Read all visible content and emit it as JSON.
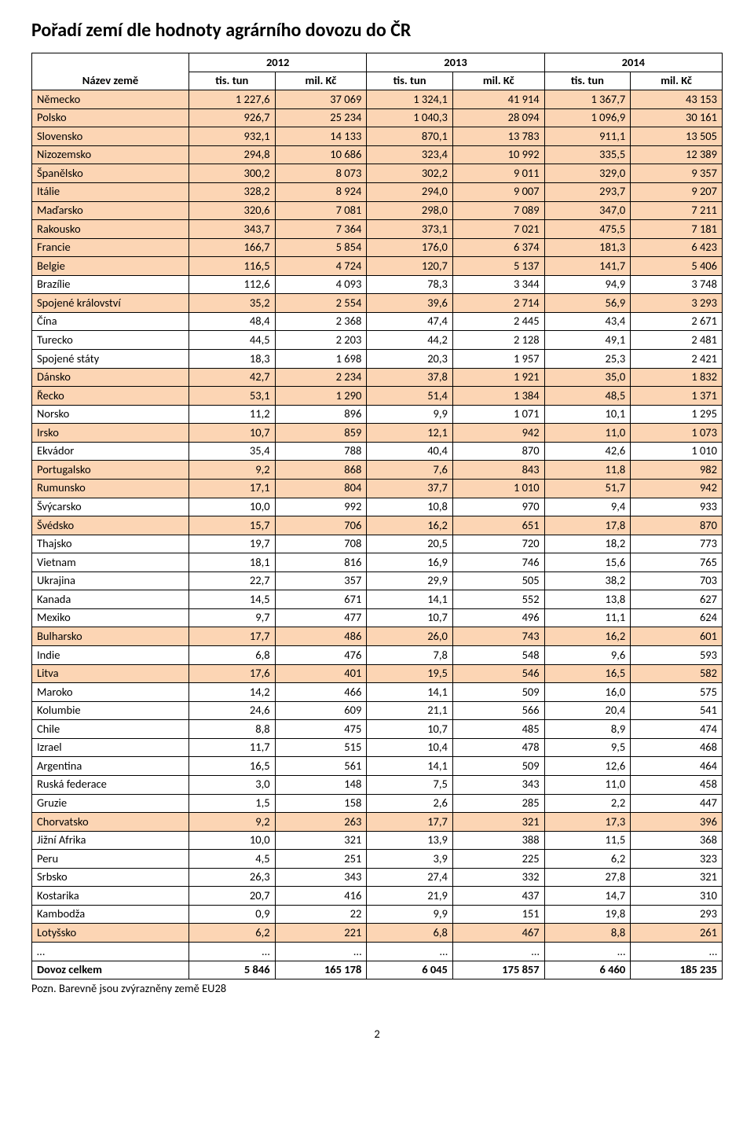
{
  "title": "Pořadí zemí dle hodnoty agrárního dovozu do ČR",
  "header": {
    "name_label": "Název země",
    "years": [
      "2012",
      "2013",
      "2014"
    ],
    "sub": [
      "tis. tun",
      "mil. Kč"
    ]
  },
  "colors": {
    "highlight": "#fcd5b4",
    "border": "#000000",
    "bg": "#ffffff"
  },
  "rows": [
    {
      "name": "Německo",
      "hl": true,
      "v": [
        "1 227,6",
        "37 069",
        "1 324,1",
        "41 914",
        "1 367,7",
        "43 153"
      ]
    },
    {
      "name": "Polsko",
      "hl": true,
      "v": [
        "926,7",
        "25 234",
        "1 040,3",
        "28 094",
        "1 096,9",
        "30 161"
      ]
    },
    {
      "name": "Slovensko",
      "hl": true,
      "v": [
        "932,1",
        "14 133",
        "870,1",
        "13 783",
        "911,1",
        "13 505"
      ]
    },
    {
      "name": "Nizozemsko",
      "hl": true,
      "v": [
        "294,8",
        "10 686",
        "323,4",
        "10 992",
        "335,5",
        "12 389"
      ]
    },
    {
      "name": "Španělsko",
      "hl": true,
      "v": [
        "300,2",
        "8 073",
        "302,2",
        "9 011",
        "329,0",
        "9 357"
      ]
    },
    {
      "name": "Itálie",
      "hl": true,
      "v": [
        "328,2",
        "8 924",
        "294,0",
        "9 007",
        "293,7",
        "9 207"
      ]
    },
    {
      "name": "Maďarsko",
      "hl": true,
      "v": [
        "320,6",
        "7 081",
        "298,0",
        "7 089",
        "347,0",
        "7 211"
      ]
    },
    {
      "name": "Rakousko",
      "hl": true,
      "v": [
        "343,7",
        "7 364",
        "373,1",
        "7 021",
        "475,5",
        "7 181"
      ]
    },
    {
      "name": "Francie",
      "hl": true,
      "v": [
        "166,7",
        "5 854",
        "176,0",
        "6 374",
        "181,3",
        "6 423"
      ]
    },
    {
      "name": "Belgie",
      "hl": true,
      "v": [
        "116,5",
        "4 724",
        "120,7",
        "5 137",
        "141,7",
        "5 406"
      ]
    },
    {
      "name": "Brazílie",
      "hl": false,
      "v": [
        "112,6",
        "4 093",
        "78,3",
        "3 344",
        "94,9",
        "3 748"
      ]
    },
    {
      "name": "Spojené království",
      "hl": true,
      "v": [
        "35,2",
        "2 554",
        "39,6",
        "2 714",
        "56,9",
        "3 293"
      ]
    },
    {
      "name": "Čína",
      "hl": false,
      "v": [
        "48,4",
        "2 368",
        "47,4",
        "2 445",
        "43,4",
        "2 671"
      ]
    },
    {
      "name": "Turecko",
      "hl": false,
      "v": [
        "44,5",
        "2 203",
        "44,2",
        "2 128",
        "49,1",
        "2 481"
      ]
    },
    {
      "name": "Spojené státy",
      "hl": false,
      "v": [
        "18,3",
        "1 698",
        "20,3",
        "1 957",
        "25,3",
        "2 421"
      ]
    },
    {
      "name": "Dánsko",
      "hl": true,
      "v": [
        "42,7",
        "2 234",
        "37,8",
        "1 921",
        "35,0",
        "1 832"
      ]
    },
    {
      "name": "Řecko",
      "hl": true,
      "v": [
        "53,1",
        "1 290",
        "51,4",
        "1 384",
        "48,5",
        "1 371"
      ]
    },
    {
      "name": "Norsko",
      "hl": false,
      "v": [
        "11,2",
        "896",
        "9,9",
        "1 071",
        "10,1",
        "1 295"
      ]
    },
    {
      "name": "Irsko",
      "hl": true,
      "v": [
        "10,7",
        "859",
        "12,1",
        "942",
        "11,0",
        "1 073"
      ]
    },
    {
      "name": "Ekvádor",
      "hl": false,
      "v": [
        "35,4",
        "788",
        "40,4",
        "870",
        "42,6",
        "1 010"
      ]
    },
    {
      "name": "Portugalsko",
      "hl": true,
      "v": [
        "9,2",
        "868",
        "7,6",
        "843",
        "11,8",
        "982"
      ]
    },
    {
      "name": "Rumunsko",
      "hl": true,
      "v": [
        "17,1",
        "804",
        "37,7",
        "1 010",
        "51,7",
        "942"
      ]
    },
    {
      "name": "Švýcarsko",
      "hl": false,
      "v": [
        "10,0",
        "992",
        "10,8",
        "970",
        "9,4",
        "933"
      ]
    },
    {
      "name": "Švédsko",
      "hl": true,
      "v": [
        "15,7",
        "706",
        "16,2",
        "651",
        "17,8",
        "870"
      ]
    },
    {
      "name": "Thajsko",
      "hl": false,
      "v": [
        "19,7",
        "708",
        "20,5",
        "720",
        "18,2",
        "773"
      ]
    },
    {
      "name": "Vietnam",
      "hl": false,
      "v": [
        "18,1",
        "816",
        "16,9",
        "746",
        "15,6",
        "765"
      ]
    },
    {
      "name": "Ukrajina",
      "hl": false,
      "v": [
        "22,7",
        "357",
        "29,9",
        "505",
        "38,2",
        "703"
      ]
    },
    {
      "name": "Kanada",
      "hl": false,
      "v": [
        "14,5",
        "671",
        "14,1",
        "552",
        "13,8",
        "627"
      ]
    },
    {
      "name": "Mexiko",
      "hl": false,
      "v": [
        "9,7",
        "477",
        "10,7",
        "496",
        "11,1",
        "624"
      ]
    },
    {
      "name": "Bulharsko",
      "hl": true,
      "v": [
        "17,7",
        "486",
        "26,0",
        "743",
        "16,2",
        "601"
      ]
    },
    {
      "name": "Indie",
      "hl": false,
      "v": [
        "6,8",
        "476",
        "7,8",
        "548",
        "9,6",
        "593"
      ]
    },
    {
      "name": "Litva",
      "hl": true,
      "v": [
        "17,6",
        "401",
        "19,5",
        "546",
        "16,5",
        "582"
      ]
    },
    {
      "name": "Maroko",
      "hl": false,
      "v": [
        "14,2",
        "466",
        "14,1",
        "509",
        "16,0",
        "575"
      ]
    },
    {
      "name": "Kolumbie",
      "hl": false,
      "v": [
        "24,6",
        "609",
        "21,1",
        "566",
        "20,4",
        "541"
      ]
    },
    {
      "name": "Chile",
      "hl": false,
      "v": [
        "8,8",
        "475",
        "10,7",
        "485",
        "8,9",
        "474"
      ]
    },
    {
      "name": "Izrael",
      "hl": false,
      "v": [
        "11,7",
        "515",
        "10,4",
        "478",
        "9,5",
        "468"
      ]
    },
    {
      "name": "Argentina",
      "hl": false,
      "v": [
        "16,5",
        "561",
        "14,1",
        "509",
        "12,6",
        "464"
      ]
    },
    {
      "name": "Ruská federace",
      "hl": false,
      "v": [
        "3,0",
        "148",
        "7,5",
        "343",
        "11,0",
        "458"
      ]
    },
    {
      "name": "Gruzie",
      "hl": false,
      "v": [
        "1,5",
        "158",
        "2,6",
        "285",
        "2,2",
        "447"
      ]
    },
    {
      "name": "Chorvatsko",
      "hl": true,
      "v": [
        "9,2",
        "263",
        "17,7",
        "321",
        "17,3",
        "396"
      ]
    },
    {
      "name": "Jižní Afrika",
      "hl": false,
      "v": [
        "10,0",
        "321",
        "13,9",
        "388",
        "11,5",
        "368"
      ]
    },
    {
      "name": "Peru",
      "hl": false,
      "v": [
        "4,5",
        "251",
        "3,9",
        "225",
        "6,2",
        "323"
      ]
    },
    {
      "name": "Srbsko",
      "hl": false,
      "v": [
        "26,3",
        "343",
        "27,4",
        "332",
        "27,8",
        "321"
      ]
    },
    {
      "name": "Kostarika",
      "hl": false,
      "v": [
        "20,7",
        "416",
        "21,9",
        "437",
        "14,7",
        "310"
      ]
    },
    {
      "name": "Kambodža",
      "hl": false,
      "v": [
        "0,9",
        "22",
        "9,9",
        "151",
        "19,8",
        "293"
      ]
    },
    {
      "name": "Lotyšsko",
      "hl": true,
      "v": [
        "6,2",
        "221",
        "6,8",
        "467",
        "8,8",
        "261"
      ]
    },
    {
      "name": "…",
      "hl": false,
      "v": [
        "…",
        "…",
        "…",
        "…",
        "…",
        "…"
      ]
    }
  ],
  "total": {
    "name": "Dovoz celkem",
    "v": [
      "5 846",
      "165 178",
      "6 045",
      "175 857",
      "6 460",
      "185 235"
    ]
  },
  "footnote": "Pozn. Barevně jsou zvýrazněny země  EU28",
  "page": "2"
}
